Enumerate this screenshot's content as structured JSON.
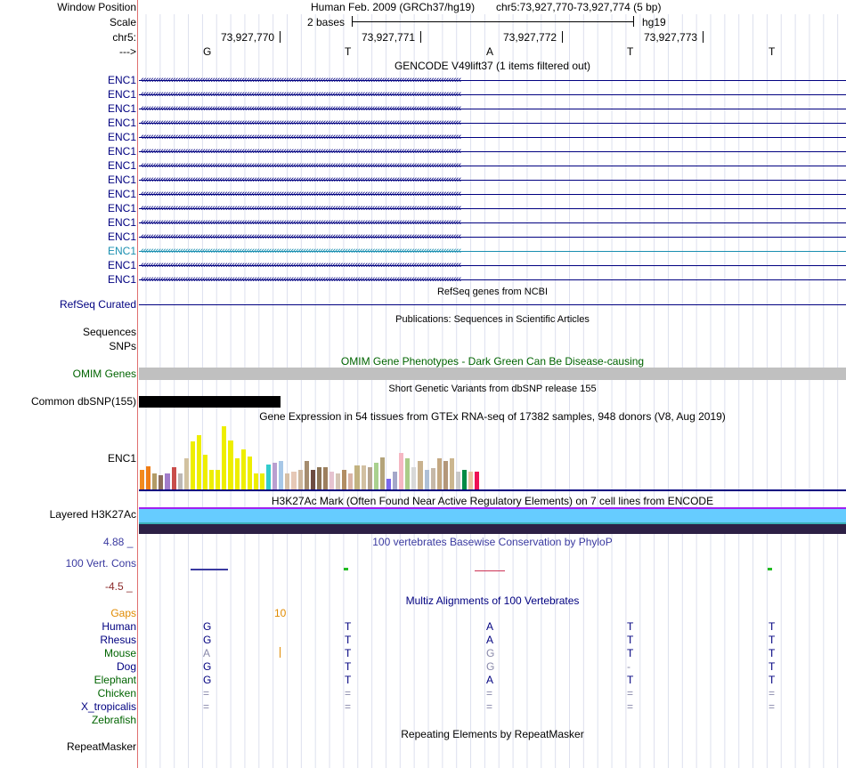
{
  "header": {
    "window_position_label": "Window Position",
    "assembly": "Human Feb. 2009 (GRCh37/hg19)",
    "position": "chr5:73,927,770-73,927,774 (5 bp)",
    "scale_label": "Scale",
    "scale_bases": "2 bases",
    "scale_db": "hg19",
    "chrom_label": "chr5:",
    "strand_label": "--->",
    "coords": [
      "73,927,770",
      "73,927,771",
      "73,927,772",
      "73,927,773"
    ],
    "bases": [
      "G",
      "T",
      "A",
      "T",
      "T"
    ]
  },
  "gencode": {
    "title": "GENCODE V49lift37 (1 items filtered out)",
    "gene_label": "ENC1",
    "row_count": 15,
    "highlight_row": 12,
    "color": "#000080",
    "highlight_color": "#1a8fb0"
  },
  "refseq": {
    "title": "RefSeq genes from NCBI",
    "label": "RefSeq Curated"
  },
  "publications": {
    "title": "Publications: Sequences in Scientific Articles",
    "label": "Sequences"
  },
  "snps": {
    "label": "SNPs"
  },
  "omim": {
    "title": "OMIM Gene Phenotypes - Dark Green Can Be Disease-causing",
    "label": "OMIM Genes",
    "color": "#006400"
  },
  "dbsnp": {
    "title": "Short Genetic Variants from dbSNP release 155",
    "label": "Common dbSNP(155)"
  },
  "gtex": {
    "title": "Gene Expression in 54 tissues from GTEx RNA-seq of 17382 samples, 948 donors (V8, Aug 2019)",
    "label": "ENC1",
    "bars": [
      {
        "v": 22,
        "c": "#f28a1e"
      },
      {
        "v": 26,
        "c": "#ef7d16"
      },
      {
        "v": 18,
        "c": "#b39b66"
      },
      {
        "v": 16,
        "c": "#8c6d5c"
      },
      {
        "v": 18,
        "c": "#a17ccb"
      },
      {
        "v": 25,
        "c": "#c94d4b"
      },
      {
        "v": 18,
        "c": "#bdb8b5"
      },
      {
        "v": 35,
        "c": "#d2c2a0"
      },
      {
        "v": 55,
        "c": "#eeee00"
      },
      {
        "v": 62,
        "c": "#eeee00"
      },
      {
        "v": 40,
        "c": "#eeee00"
      },
      {
        "v": 22,
        "c": "#eeee00"
      },
      {
        "v": 22,
        "c": "#eeee00"
      },
      {
        "v": 72,
        "c": "#eeee00"
      },
      {
        "v": 56,
        "c": "#eeee00"
      },
      {
        "v": 35,
        "c": "#eeee00"
      },
      {
        "v": 46,
        "c": "#eeee00"
      },
      {
        "v": 38,
        "c": "#eeee00"
      },
      {
        "v": 18,
        "c": "#eeee00"
      },
      {
        "v": 18,
        "c": "#eeee00"
      },
      {
        "v": 28,
        "c": "#33cccc"
      },
      {
        "v": 30,
        "c": "#b99fd0"
      },
      {
        "v": 32,
        "c": "#a7c7e7"
      },
      {
        "v": 18,
        "c": "#d6bfa6"
      },
      {
        "v": 20,
        "c": "#e6c8b6"
      },
      {
        "v": 22,
        "c": "#cdb79e"
      },
      {
        "v": 32,
        "c": "#a58c6f"
      },
      {
        "v": 22,
        "c": "#6d4c41"
      },
      {
        "v": 25,
        "c": "#8b7355"
      },
      {
        "v": 25,
        "c": "#9c7f5e"
      },
      {
        "v": 20,
        "c": "#e6c3d0"
      },
      {
        "v": 18,
        "c": "#d5c5b5"
      },
      {
        "v": 22,
        "c": "#b28d63"
      },
      {
        "v": 18,
        "c": "#d9b4a6"
      },
      {
        "v": 27,
        "c": "#c2b280"
      },
      {
        "v": 27,
        "c": "#d2c0a2"
      },
      {
        "v": 25,
        "c": "#b6a48e"
      },
      {
        "v": 30,
        "c": "#a9d18e"
      },
      {
        "v": 36,
        "c": "#b3a37a"
      },
      {
        "v": 12,
        "c": "#7b68ee"
      },
      {
        "v": 20,
        "c": "#a4a7c9"
      },
      {
        "v": 42,
        "c": "#f5b7c3"
      },
      {
        "v": 35,
        "c": "#aacc88"
      },
      {
        "v": 25,
        "c": "#d8d8d8"
      },
      {
        "v": 32,
        "c": "#c9b28f"
      },
      {
        "v": 22,
        "c": "#aebfd6"
      },
      {
        "v": 24,
        "c": "#c6b8a8"
      },
      {
        "v": 35,
        "c": "#c4a882"
      },
      {
        "v": 32,
        "c": "#b3977a"
      },
      {
        "v": 35,
        "c": "#cbb68f"
      },
      {
        "v": 20,
        "c": "#c9c9c9"
      },
      {
        "v": 22,
        "c": "#008b45"
      },
      {
        "v": 20,
        "c": "#e8c4a0"
      },
      {
        "v": 20,
        "c": "#ee1155"
      }
    ]
  },
  "h3k27ac": {
    "title": "H3K27Ac Mark (Often Found Near Active Regulatory Elements) on 7 cell lines from ENCODE",
    "label": "Layered H3K27Ac"
  },
  "phylop": {
    "title": "100 vertebrates Basewise Conservation by PhyloP",
    "label": "100 Vert. Cons",
    "max": "4.88 _",
    "min": "-4.5 _",
    "color": "#3a3aa0"
  },
  "multiz": {
    "title": "Multiz Alignments of 100 Vertebrates",
    "gaps_label": "Gaps",
    "gaps_value": "10",
    "species": [
      {
        "name": "Human",
        "color": "#000080",
        "bases": [
          "G",
          "T",
          "A",
          "T",
          "T"
        ],
        "faded": [
          false,
          false,
          false,
          false,
          false
        ]
      },
      {
        "name": "Rhesus",
        "color": "#000080",
        "bases": [
          "G",
          "T",
          "A",
          "T",
          "T"
        ],
        "faded": [
          false,
          false,
          false,
          false,
          false
        ]
      },
      {
        "name": "Mouse",
        "color": "#006400",
        "bases": [
          "A",
          "T",
          "G",
          "T",
          "T"
        ],
        "faded": [
          true,
          false,
          true,
          false,
          false
        ]
      },
      {
        "name": "Dog",
        "color": "#000080",
        "bases": [
          "G",
          "T",
          "G",
          "-",
          "T"
        ],
        "faded": [
          false,
          false,
          true,
          true,
          false
        ]
      },
      {
        "name": "Elephant",
        "color": "#006400",
        "bases": [
          "G",
          "T",
          "A",
          "T",
          "T"
        ],
        "faded": [
          false,
          false,
          false,
          false,
          false
        ]
      },
      {
        "name": "Chicken",
        "color": "#006400",
        "bases": [
          "=",
          "=",
          "=",
          "=",
          "="
        ],
        "faded": [
          true,
          true,
          true,
          true,
          true
        ]
      },
      {
        "name": "X_tropicalis",
        "color": "#000080",
        "bases": [
          "=",
          "=",
          "=",
          "=",
          "="
        ],
        "faded": [
          true,
          true,
          true,
          true,
          true
        ]
      },
      {
        "name": "Zebrafish",
        "color": "#006400",
        "bases": [
          "",
          "",
          "",
          "",
          ""
        ],
        "faded": [
          false,
          false,
          false,
          false,
          false
        ]
      }
    ]
  },
  "repeatmasker": {
    "title": "Repeating Elements by RepeatMasker",
    "label": "RepeatMasker"
  }
}
